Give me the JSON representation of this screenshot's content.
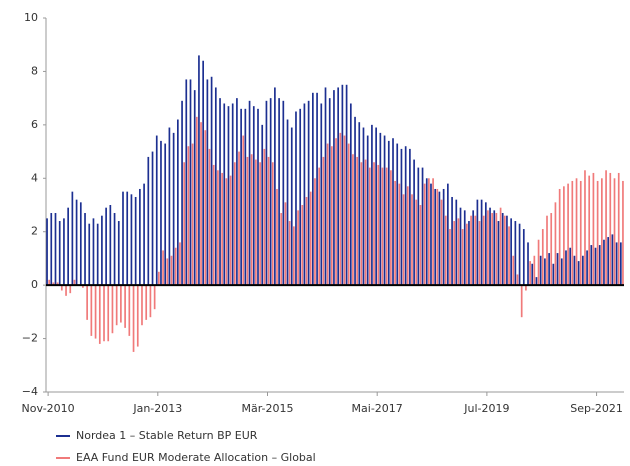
{
  "chart_data": {
    "type": "bar",
    "categories": [
      "Nov-2010",
      null,
      null,
      null,
      null,
      null,
      null,
      null,
      null,
      null,
      null,
      null,
      null,
      null,
      null,
      null,
      null,
      null,
      null,
      null,
      null,
      null,
      null,
      null,
      null,
      null,
      "Jan-2013",
      null,
      null,
      null,
      null,
      null,
      null,
      null,
      null,
      null,
      null,
      null,
      null,
      null,
      null,
      null,
      null,
      null,
      null,
      null,
      null,
      null,
      null,
      null,
      null,
      null,
      "Mär-2015",
      null,
      null,
      null,
      null,
      null,
      null,
      null,
      null,
      null,
      null,
      null,
      null,
      null,
      null,
      null,
      null,
      null,
      null,
      null,
      null,
      null,
      null,
      null,
      null,
      null,
      "Mai-2017",
      null,
      null,
      null,
      null,
      null,
      null,
      null,
      null,
      null,
      null,
      null,
      null,
      null,
      null,
      null,
      null,
      null,
      null,
      null,
      null,
      null,
      null,
      null,
      null,
      null,
      "Jul-2019",
      null,
      null,
      null,
      null,
      null,
      null,
      null,
      null,
      null,
      null,
      null,
      null,
      null,
      null,
      null,
      null,
      null,
      null,
      null,
      null,
      null,
      null,
      null,
      null,
      null,
      "Sep-2021",
      null,
      null,
      null,
      null,
      null,
      null
    ],
    "series": [
      {
        "name": "Nordea 1 – Stable Return BP EUR",
        "color": "#1c2f91",
        "values": [
          2.5,
          2.7,
          2.7,
          2.4,
          2.5,
          2.9,
          3.5,
          3.2,
          3.1,
          2.7,
          2.3,
          2.5,
          2.3,
          2.6,
          2.9,
          3.0,
          2.7,
          2.4,
          3.5,
          3.5,
          3.4,
          3.3,
          3.6,
          3.8,
          4.8,
          5.0,
          5.6,
          5.4,
          5.3,
          5.9,
          5.7,
          6.2,
          6.9,
          7.7,
          7.7,
          7.3,
          8.6,
          8.4,
          7.7,
          7.8,
          7.4,
          7.0,
          6.8,
          6.7,
          6.8,
          7.0,
          6.6,
          6.6,
          6.9,
          6.7,
          6.6,
          6.0,
          6.9,
          7.0,
          7.4,
          7.0,
          6.9,
          6.2,
          5.9,
          6.5,
          6.6,
          6.8,
          6.9,
          7.2,
          7.2,
          6.8,
          7.4,
          7.0,
          7.3,
          7.4,
          7.5,
          7.5,
          6.8,
          6.3,
          6.1,
          5.9,
          5.6,
          6.0,
          5.9,
          5.7,
          5.6,
          5.4,
          5.5,
          5.3,
          5.1,
          5.2,
          5.1,
          4.7,
          4.4,
          4.4,
          4.0,
          3.8,
          3.6,
          3.5,
          3.6,
          3.8,
          3.3,
          3.2,
          2.9,
          2.8,
          2.4,
          2.8,
          3.2,
          3.2,
          3.1,
          2.9,
          2.8,
          2.4,
          2.7,
          2.6,
          2.5,
          2.4,
          2.3,
          2.1,
          1.6,
          0.8,
          0.3,
          1.1,
          1.0,
          1.2,
          0.8,
          1.2,
          1.0,
          1.3,
          1.4,
          1.1,
          0.9,
          1.1,
          1.3,
          1.5,
          1.4,
          1.5,
          1.7,
          1.8,
          1.9,
          1.6,
          1.6
        ]
      },
      {
        "name": "EAA Fund EUR Moderate Allocation – Global",
        "color": "#f07a7a",
        "values": [
          0.2,
          0.1,
          0.1,
          -0.2,
          -0.4,
          -0.3,
          0.2,
          0.0,
          -0.1,
          -1.3,
          -1.9,
          -2.0,
          -2.2,
          -2.1,
          -2.1,
          -1.8,
          -1.5,
          -1.4,
          -1.6,
          -1.9,
          -2.5,
          -2.3,
          -1.5,
          -1.3,
          -1.2,
          -0.9,
          0.5,
          1.3,
          1.0,
          1.1,
          1.4,
          1.6,
          4.6,
          5.2,
          5.3,
          6.3,
          6.1,
          5.8,
          5.1,
          4.5,
          4.3,
          4.2,
          4.0,
          4.1,
          4.6,
          5.0,
          5.6,
          4.8,
          4.9,
          4.7,
          4.6,
          5.1,
          4.8,
          4.6,
          3.6,
          2.7,
          3.1,
          2.4,
          2.2,
          2.8,
          3.0,
          3.3,
          3.5,
          4.0,
          4.4,
          4.8,
          5.3,
          5.2,
          5.5,
          5.7,
          5.6,
          5.3,
          4.9,
          4.8,
          4.6,
          4.7,
          4.4,
          4.6,
          4.5,
          4.4,
          4.4,
          4.3,
          3.9,
          3.8,
          3.4,
          3.7,
          3.4,
          3.2,
          3.0,
          3.8,
          4.0,
          4.0,
          3.6,
          3.2,
          2.6,
          2.1,
          2.4,
          2.5,
          2.1,
          2.3,
          2.6,
          2.6,
          2.4,
          2.6,
          2.8,
          2.7,
          2.7,
          2.9,
          2.6,
          2.2,
          1.1,
          0.4,
          -1.2,
          -0.2,
          0.9,
          1.1,
          1.7,
          2.1,
          2.6,
          2.7,
          3.1,
          3.6,
          3.7,
          3.8,
          3.9,
          4.0,
          3.9,
          4.3,
          4.1,
          4.2,
          3.9,
          4.0,
          4.3,
          4.2,
          4.0,
          4.2,
          3.9
        ]
      }
    ],
    "ylim": [
      -4,
      10
    ],
    "yticks": [
      {
        "value": -4,
        "label": "−4"
      },
      {
        "value": -2,
        "label": "−2"
      },
      0,
      2,
      4,
      6,
      8,
      10
    ],
    "grid": false
  }
}
